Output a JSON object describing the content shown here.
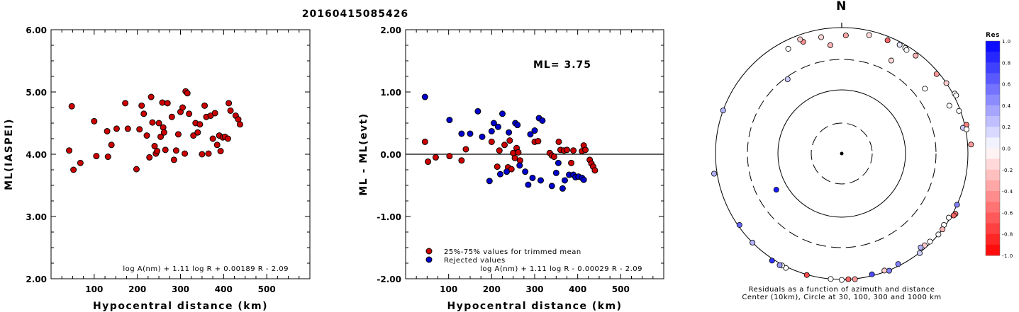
{
  "title": "20160415085426",
  "chart_data": [
    {
      "type": "scatter",
      "name": "ml-vs-distance",
      "xlabel": "Hypocentral distance (km)",
      "ylabel": "ML(IASPEI)",
      "xlim": [
        0,
        600
      ],
      "ylim": [
        2,
        6
      ],
      "xticks": [
        "100",
        "200",
        "300",
        "400",
        "500"
      ],
      "xtick_values": [
        100,
        200,
        300,
        400,
        500
      ],
      "yticks": [
        "2.00",
        "3.00",
        "4.00",
        "5.00",
        "6.00"
      ],
      "ytick_values": [
        2,
        3,
        4,
        5,
        6
      ],
      "formula": "log A(nm) + 1.11 log R + 0.00189 R - 2.09",
      "marker_color": "#cc0000",
      "points": [
        [
          42,
          4.06
        ],
        [
          48,
          4.77
        ],
        [
          52,
          3.75
        ],
        [
          68,
          3.86
        ],
        [
          100,
          4.53
        ],
        [
          105,
          3.97
        ],
        [
          130,
          4.37
        ],
        [
          132,
          3.96
        ],
        [
          140,
          4.15
        ],
        [
          152,
          4.41
        ],
        [
          172,
          4.82
        ],
        [
          178,
          4.41
        ],
        [
          198,
          3.76
        ],
        [
          205,
          4.4
        ],
        [
          210,
          4.78
        ],
        [
          215,
          4.65
        ],
        [
          222,
          4.3
        ],
        [
          228,
          3.95
        ],
        [
          232,
          4.92
        ],
        [
          235,
          4.51
        ],
        [
          240,
          4.13
        ],
        [
          243,
          4.01
        ],
        [
          246,
          4.05
        ],
        [
          250,
          4.5
        ],
        [
          254,
          4.28
        ],
        [
          258,
          4.83
        ],
        [
          260,
          4.43
        ],
        [
          262,
          4.35
        ],
        [
          265,
          4.07
        ],
        [
          270,
          4.82
        ],
        [
          280,
          4.6
        ],
        [
          285,
          3.91
        ],
        [
          290,
          4.06
        ],
        [
          295,
          4.32
        ],
        [
          300,
          4.68
        ],
        [
          305,
          4.75
        ],
        [
          310,
          4.01
        ],
        [
          312,
          5.01
        ],
        [
          316,
          4.98
        ],
        [
          320,
          4.65
        ],
        [
          330,
          4.3
        ],
        [
          335,
          4.5
        ],
        [
          340,
          4.35
        ],
        [
          345,
          4.48
        ],
        [
          350,
          4.0
        ],
        [
          356,
          4.78
        ],
        [
          360,
          4.6
        ],
        [
          365,
          4.01
        ],
        [
          370,
          4.62
        ],
        [
          375,
          4.25
        ],
        [
          380,
          4.66
        ],
        [
          385,
          4.15
        ],
        [
          390,
          4.3
        ],
        [
          393,
          4.05
        ],
        [
          398,
          4.27
        ],
        [
          403,
          4.28
        ],
        [
          410,
          4.25
        ],
        [
          412,
          4.82
        ],
        [
          416,
          4.7
        ],
        [
          428,
          4.62
        ],
        [
          434,
          4.56
        ],
        [
          438,
          4.48
        ]
      ]
    },
    {
      "type": "scatter",
      "name": "residual-vs-distance",
      "xlabel": "Hypocentral distance (km)",
      "ylabel": "ML - ML(evt)",
      "xlim": [
        0,
        600
      ],
      "ylim": [
        -2,
        2
      ],
      "xticks": [
        "100",
        "200",
        "300",
        "400",
        "500"
      ],
      "xtick_values": [
        100,
        200,
        300,
        400,
        500
      ],
      "yticks": [
        "-2.00",
        "-1.00",
        "0.00",
        "1.00",
        "2.00"
      ],
      "ytick_values": [
        -2,
        -1,
        0,
        1,
        2
      ],
      "annotation": "ML= 3.75",
      "zero_line": 0,
      "formula": "log A(nm) + 1.11 log R - 0.00029 R - 2.09",
      "series": [
        {
          "name": "25%-75% values for trimmed mean",
          "color": "#cc0000",
          "points": [
            [
              45,
              0.2
            ],
            [
              52,
              -0.12
            ],
            [
              70,
              -0.05
            ],
            [
              102,
              -0.03
            ],
            [
              130,
              -0.1
            ],
            [
              140,
              0.08
            ],
            [
              200,
              0.2
            ],
            [
              213,
              -0.2
            ],
            [
              218,
              0.06
            ],
            [
              230,
              0.15
            ],
            [
              238,
              -0.21
            ],
            [
              242,
              0.22
            ],
            [
              246,
              -0.24
            ],
            [
              250,
              0.02
            ],
            [
              254,
              -0.06
            ],
            [
              258,
              0.1
            ],
            [
              262,
              0.03
            ],
            [
              266,
              -0.1
            ],
            [
              300,
              0.2
            ],
            [
              308,
              0.21
            ],
            [
              335,
              0.02
            ],
            [
              340,
              -0.02
            ],
            [
              345,
              -0.04
            ],
            [
              356,
              0.2
            ],
            [
              360,
              0.07
            ],
            [
              368,
              0.06
            ],
            [
              375,
              0.07
            ],
            [
              385,
              -0.14
            ],
            [
              390,
              0.06
            ],
            [
              410,
              0.05
            ],
            [
              414,
              0.14
            ],
            [
              418,
              0.07
            ],
            [
              428,
              -0.09
            ],
            [
              432,
              -0.15
            ],
            [
              436,
              -0.2
            ],
            [
              440,
              -0.26
            ]
          ]
        },
        {
          "name": "Rejected values",
          "color": "#0000cc",
          "points": [
            [
              45,
              0.92
            ],
            [
              102,
              0.55
            ],
            [
              130,
              0.33
            ],
            [
              150,
              0.33
            ],
            [
              168,
              0.69
            ],
            [
              178,
              0.28
            ],
            [
              195,
              -0.43
            ],
            [
              200,
              0.37
            ],
            [
              205,
              0.5
            ],
            [
              215,
              0.44
            ],
            [
              220,
              -0.32
            ],
            [
              225,
              0.65
            ],
            [
              235,
              -0.28
            ],
            [
              240,
              0.35
            ],
            [
              255,
              0.5
            ],
            [
              260,
              0.47
            ],
            [
              265,
              -0.18
            ],
            [
              278,
              -0.28
            ],
            [
              285,
              -0.49
            ],
            [
              290,
              0.32
            ],
            [
              295,
              -0.38
            ],
            [
              300,
              0.38
            ],
            [
              310,
              0.58
            ],
            [
              314,
              -0.42
            ],
            [
              318,
              0.54
            ],
            [
              340,
              -0.51
            ],
            [
              350,
              -0.3
            ],
            [
              355,
              -0.14
            ],
            [
              365,
              -0.55
            ],
            [
              370,
              -0.42
            ],
            [
              380,
              -0.33
            ],
            [
              390,
              -0.33
            ],
            [
              395,
              -0.37
            ],
            [
              402,
              -0.36
            ],
            [
              410,
              -0.38
            ],
            [
              414,
              -0.41
            ]
          ]
        }
      ]
    },
    {
      "type": "scatter",
      "name": "azimuth-polar",
      "north_label": "N",
      "caption_line1": "Residuals as a function of azimuth and distance",
      "caption_line2": "Center (10km), Circle at 30, 100, 300 and 1000 km",
      "colorbar_title": "Res",
      "colorbar_ticks": [
        "1.0",
        "0.8",
        "0.6",
        "0.4",
        "0.2",
        "0.0",
        "-0.2",
        "-0.4",
        "-0.6",
        "-0.8",
        "-1.0"
      ],
      "colorbar_tick_values": [
        1.0,
        0.8,
        0.6,
        0.4,
        0.2,
        0.0,
        -0.2,
        -0.4,
        -0.6,
        -0.8,
        -1.0
      ],
      "rings_km": [
        10,
        30,
        100,
        300,
        1000
      ],
      "stations": [
        {
          "az": -19,
          "dist": 225,
          "res": -0.45
        },
        {
          "az": -10,
          "dist": 225,
          "res": -0.15
        },
        {
          "az": 2,
          "dist": 225,
          "res": -0.35
        },
        {
          "az": 13,
          "dist": 255,
          "res": -0.15
        },
        {
          "az": 22,
          "dist": 260,
          "res": -0.6
        },
        {
          "az": 28,
          "dist": 270,
          "res": 0.1
        },
        {
          "az": 31,
          "dist": 270,
          "res": 0.0
        },
        {
          "az": 32,
          "dist": 260,
          "res": 0.0
        },
        {
          "az": 37,
          "dist": 265,
          "res": -0.3
        },
        {
          "az": 50,
          "dist": 275,
          "res": -0.4
        },
        {
          "az": 56,
          "dist": 300,
          "res": -0.2
        },
        {
          "az": 62,
          "dist": 320,
          "res": 0.0
        },
        {
          "az": 63,
          "dist": 325,
          "res": 0.0
        },
        {
          "az": 70,
          "dist": 285,
          "res": 0.0
        },
        {
          "az": 77,
          "dist": 320,
          "res": -0.5
        },
        {
          "az": 78,
          "dist": 275,
          "res": 0.2
        },
        {
          "az": 79,
          "dist": 310,
          "res": 0.0
        },
        {
          "az": 86,
          "dist": 340,
          "res": -0.4
        },
        {
          "az": 114,
          "dist": 300,
          "res": 0.5
        },
        {
          "az": 118,
          "dist": 330,
          "res": -0.55
        },
        {
          "az": 119,
          "dist": 320,
          "res": -0.6
        },
        {
          "az": 121,
          "dist": 285,
          "res": 0.0
        },
        {
          "az": 125,
          "dist": 285,
          "res": 0.0
        },
        {
          "az": 127,
          "dist": 300,
          "res": -0.3
        },
        {
          "az": 130,
          "dist": 300,
          "res": 0.0
        },
        {
          "az": 135,
          "dist": 285,
          "res": 0.0
        },
        {
          "az": 138,
          "dist": 275,
          "res": -0.2
        },
        {
          "az": 140,
          "dist": 265,
          "res": 0.3
        },
        {
          "az": 142,
          "dist": 305,
          "res": 0.2
        },
        {
          "az": 153,
          "dist": 280,
          "res": 0.5
        },
        {
          "az": 158,
          "dist": 305,
          "res": 0.5
        },
        {
          "az": 160,
          "dist": 285,
          "res": -0.2
        },
        {
          "az": 166,
          "dist": 285,
          "res": 0.7
        },
        {
          "az": 174,
          "dist": 305,
          "res": -0.4
        },
        {
          "az": 177,
          "dist": 300,
          "res": -0.6
        },
        {
          "az": 180,
          "dist": 305,
          "res": 0.0
        },
        {
          "az": 185,
          "dist": 300,
          "res": 0.0
        },
        {
          "az": 196,
          "dist": 305,
          "res": -0.7
        },
        {
          "az": 206,
          "dist": 315,
          "res": 0.0
        },
        {
          "az": 208,
          "dist": 310,
          "res": 0.0
        },
        {
          "az": 209,
          "dist": 320,
          "res": 0.4
        },
        {
          "az": 213,
          "dist": 320,
          "res": 0.8
        },
        {
          "az": 225,
          "dist": 300,
          "res": 0.3
        },
        {
          "az": 235,
          "dist": 285,
          "res": 0.6
        },
        {
          "az": 241,
          "dist": 45,
          "res": 0.9
        },
        {
          "az": 261,
          "dist": 335,
          "res": 0.3
        },
        {
          "az": 290,
          "dist": 300,
          "res": 0.3
        },
        {
          "az": 324,
          "dist": 85,
          "res": 0.2
        },
        {
          "az": 333,
          "dist": 220,
          "res": 0.0
        },
        {
          "az": 340,
          "dist": 255,
          "res": -0.2
        },
        {
          "az": 354,
          "dist": 160,
          "res": -0.3
        },
        {
          "az": 28,
          "dist": 140,
          "res": -0.15
        },
        {
          "az": 52,
          "dist": 140,
          "res": 0.0
        },
        {
          "az": 66,
          "dist": 220,
          "res": 0.0
        }
      ]
    }
  ]
}
